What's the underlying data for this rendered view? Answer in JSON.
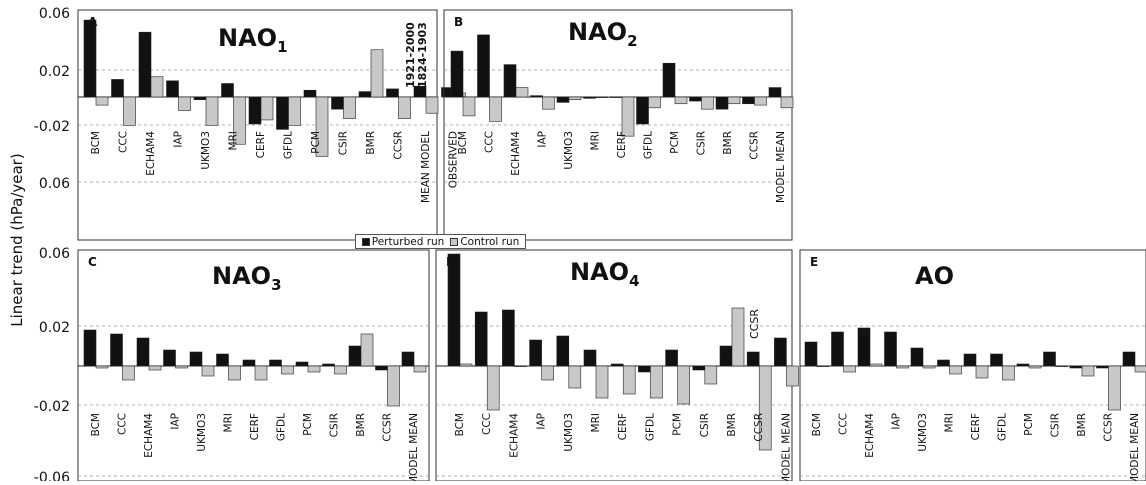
{
  "figure": {
    "ylabel": "Linear trend (hPa/year)",
    "legend": [
      {
        "label": "Perturbed run",
        "color": "#111111"
      },
      {
        "label": "Control run",
        "color": "#c8c8c8"
      }
    ]
  },
  "chart_data": [
    {
      "type": "bar",
      "panel": "A",
      "title": "NAO",
      "title_sub": "1",
      "categories": [
        "BCM",
        "CCC",
        "ECHAM4",
        "IAP",
        "UKMO3",
        "MRI",
        "CERF",
        "GFDL",
        "PCM",
        "CSIR",
        "BMR",
        "CCSR",
        "MEAN MODEL",
        "OBSERVED"
      ],
      "series": [
        {
          "name": "Perturbed run",
          "values": [
            0.057,
            0.013,
            0.048,
            0.012,
            -0.002,
            0.01,
            -0.02,
            -0.024,
            0.005,
            -0.009,
            0.004,
            0.006,
            0.008,
            0.007
          ]
        },
        {
          "name": "Control run",
          "values": [
            -0.006,
            -0.021,
            0.015,
            -0.01,
            -0.021,
            -0.035,
            -0.017,
            -0.021,
            -0.044,
            -0.016,
            0.035,
            -0.016,
            -0.012,
            0.003
          ]
        }
      ],
      "ylim": [
        -0.06,
        0.06
      ],
      "yticks": [
        "0.06",
        "0.02",
        "-0.02",
        "0.06"
      ],
      "annotation_labels": [
        "1921-2000",
        "1824-1903"
      ]
    },
    {
      "type": "bar",
      "panel": "B",
      "title": "NAO",
      "title_sub": "2",
      "categories": [
        "BCM",
        "CCC",
        "ECHAM4",
        "IAP",
        "UKMO3",
        "MRI",
        "CERF",
        "GFDL",
        "PCM",
        "CSIR",
        "BMR",
        "CCSR",
        "MODEL MEAN"
      ],
      "series": [
        {
          "name": "Perturbed run",
          "values": [
            0.034,
            0.046,
            0.024,
            0.001,
            -0.004,
            -0.001,
            0.0,
            -0.02,
            0.025,
            -0.003,
            -0.009,
            -0.005,
            0.007
          ]
        },
        {
          "name": "Control run",
          "values": [
            -0.014,
            -0.018,
            0.007,
            -0.009,
            -0.002,
            0.0,
            -0.029,
            -0.008,
            -0.005,
            -0.009,
            -0.005,
            -0.006,
            -0.008
          ]
        }
      ],
      "ylim": [
        -0.06,
        0.06
      ],
      "yticks": []
    },
    {
      "type": "bar",
      "panel": "C",
      "title": "NAO",
      "title_sub": "3",
      "categories": [
        "BCM",
        "CCC",
        "ECHAM4",
        "IAP",
        "UKMO3",
        "MRI",
        "CERF",
        "GFDL",
        "PCM",
        "CSIR",
        "BMR",
        "CCSR",
        "MODEL MEAN"
      ],
      "series": [
        {
          "name": "Perturbed run",
          "values": [
            0.018,
            0.016,
            0.014,
            0.008,
            0.007,
            0.006,
            0.003,
            0.003,
            0.002,
            0.001,
            0.01,
            -0.002,
            0.007
          ]
        },
        {
          "name": "Control run",
          "values": [
            -0.001,
            -0.007,
            -0.002,
            -0.001,
            -0.005,
            -0.007,
            -0.007,
            -0.004,
            -0.003,
            -0.004,
            0.016,
            -0.02,
            -0.003
          ]
        }
      ],
      "ylim": [
        -0.06,
        0.06
      ],
      "yticks": [
        "0.06",
        "0.02",
        "-0.02",
        "-0.06"
      ]
    },
    {
      "type": "bar",
      "panel": "D",
      "title": "NAO",
      "title_sub": "4",
      "categories": [
        "BCM",
        "CCC",
        "ECHAM4",
        "IAP",
        "UKMO3",
        "MRI",
        "CERF",
        "GFDL",
        "PCM",
        "CSIR",
        "BMR",
        "CCSR",
        "MODEL MEAN"
      ],
      "series": [
        {
          "name": "Perturbed run",
          "values": [
            0.056,
            0.027,
            0.028,
            0.013,
            0.015,
            0.008,
            0.001,
            -0.003,
            0.008,
            -0.002,
            0.01,
            0.007,
            0.014
          ]
        },
        {
          "name": "Control run",
          "values": [
            0.001,
            -0.022,
            0.0,
            -0.007,
            -0.011,
            -0.016,
            -0.014,
            -0.016,
            -0.019,
            -0.009,
            0.029,
            -0.042,
            -0.01
          ]
        }
      ],
      "ylim": [
        -0.06,
        0.06
      ],
      "yticks": [],
      "annotation_labels": [
        "CCSR"
      ]
    },
    {
      "type": "bar",
      "panel": "E",
      "title": "AO",
      "title_sub": "",
      "categories": [
        "BCM",
        "CCC",
        "ECHAM4",
        "IAP",
        "UKMO3",
        "MRI",
        "CERF",
        "GFDL",
        "PCM",
        "CSIR",
        "BMR",
        "CCSR",
        "MODEL MEAN"
      ],
      "series": [
        {
          "name": "Perturbed run",
          "values": [
            0.012,
            0.017,
            0.019,
            0.017,
            0.009,
            0.003,
            0.006,
            0.006,
            0.001,
            0.007,
            -0.001,
            -0.001,
            0.007
          ]
        },
        {
          "name": "Control run",
          "values": [
            0.0,
            -0.003,
            0.001,
            -0.001,
            -0.001,
            -0.004,
            -0.006,
            -0.007,
            -0.001,
            0.0,
            -0.005,
            -0.022,
            -0.003
          ]
        }
      ],
      "ylim": [
        -0.06,
        0.06
      ],
      "yticks": []
    }
  ]
}
